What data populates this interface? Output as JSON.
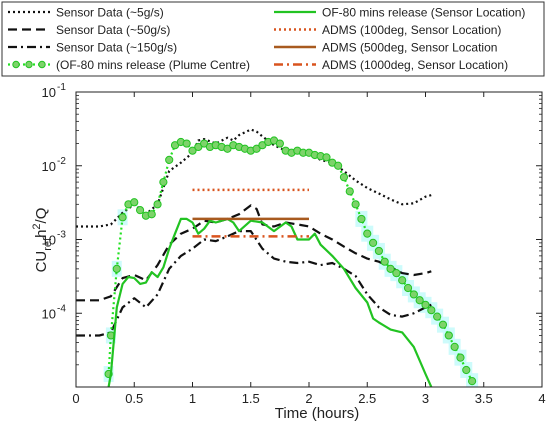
{
  "chart_data": {
    "type": "line",
    "xlabel": "Time (hours)",
    "ylabel": {
      "base": "CU",
      "sub": "ref",
      "mid": "h",
      "sup": "2",
      "tail": "/Q"
    },
    "xlim": [
      0,
      4
    ],
    "ylim": [
      1e-05,
      0.1
    ],
    "yscale": "log",
    "grid": false,
    "legend_position": "top (above plot, two columns)",
    "x_ticks": [
      0,
      0.5,
      1,
      1.5,
      2,
      2.5,
      3,
      3.5,
      4
    ],
    "x_tick_labels": [
      "0",
      "0.5",
      "1",
      "1.5",
      "2",
      "2.5",
      "3",
      "3.5",
      "4"
    ],
    "y_ticks": [
      {
        "value": 0.0001,
        "exp": "-4"
      },
      {
        "value": 0.001,
        "exp": "-3"
      },
      {
        "value": 0.01,
        "exp": "-2"
      },
      {
        "value": 0.1,
        "exp": "-1"
      }
    ],
    "y_tick_base": "10",
    "series": [
      {
        "name": "Sensor Data (~5g/s)",
        "color": "#111111",
        "dash": "dot",
        "x": [
          0.0,
          0.2,
          0.3,
          0.4,
          0.5,
          0.6,
          0.7,
          0.8,
          0.9,
          1.0,
          1.05,
          1.1,
          1.2,
          1.3,
          1.35,
          1.4,
          1.5,
          1.55,
          1.6,
          1.7,
          1.8,
          1.9,
          2.0,
          2.1,
          2.2,
          2.3,
          2.4,
          2.5,
          2.6,
          2.7,
          2.8,
          2.9,
          3.0,
          3.05
        ],
        "y": [
          0.0015,
          0.0015,
          0.0016,
          0.0023,
          0.003,
          0.0022,
          0.003,
          0.0085,
          0.011,
          0.015,
          0.022,
          0.023,
          0.02,
          0.024,
          0.022,
          0.026,
          0.031,
          0.029,
          0.025,
          0.019,
          0.016,
          0.016,
          0.015,
          0.012,
          0.011,
          0.0085,
          0.0063,
          0.005,
          0.0042,
          0.0035,
          0.003,
          0.0031,
          0.0038,
          0.004
        ]
      },
      {
        "name": "Sensor Data (~50g/s)",
        "color": "#111111",
        "dash": "dash",
        "x": [
          0.0,
          0.2,
          0.3,
          0.4,
          0.5,
          0.6,
          0.7,
          0.8,
          0.9,
          1.0,
          1.1,
          1.2,
          1.3,
          1.4,
          1.5,
          1.55,
          1.6,
          1.7,
          1.8,
          1.9,
          2.0,
          2.1,
          2.2,
          2.3,
          2.4,
          2.5,
          2.6,
          2.7,
          2.8,
          2.9,
          3.0,
          3.05
        ],
        "y": [
          0.00015,
          0.00015,
          0.00017,
          0.0003,
          0.00033,
          0.00028,
          0.00045,
          0.00085,
          0.0012,
          0.0014,
          0.0018,
          0.0017,
          0.0019,
          0.0022,
          0.0029,
          0.0026,
          0.0016,
          0.0015,
          0.0017,
          0.0016,
          0.0015,
          0.0012,
          0.001,
          0.0008,
          0.00065,
          0.00055,
          0.0005,
          0.00042,
          0.00035,
          0.00033,
          0.00035,
          0.00037
        ]
      },
      {
        "name": "Sensor Data (~150g/s)",
        "color": "#111111",
        "dash": "dashdot",
        "x": [
          0.0,
          0.2,
          0.3,
          0.4,
          0.5,
          0.6,
          0.7,
          0.8,
          0.9,
          1.0,
          1.1,
          1.2,
          1.3,
          1.4,
          1.5,
          1.6,
          1.7,
          1.8,
          1.9,
          2.0,
          2.1,
          2.2,
          2.3,
          2.4,
          2.5,
          2.6,
          2.7,
          2.8,
          2.9,
          3.0,
          3.05
        ],
        "y": [
          5e-05,
          5e-05,
          5.5e-05,
          0.00012,
          0.00016,
          0.00012,
          0.00018,
          0.0004,
          0.0006,
          0.00075,
          0.001,
          0.00095,
          0.0011,
          0.0013,
          0.0013,
          0.00075,
          0.00055,
          0.0005,
          0.00048,
          0.0005,
          0.00045,
          0.00048,
          0.0004,
          0.00032,
          0.00018,
          0.00012,
          9.5e-05,
          9e-05,
          0.0001,
          0.00012,
          0.00013
        ]
      },
      {
        "name": "(OF-80 mins release (Plume Centre)",
        "color": "#22e022",
        "dash": "dot",
        "markers": true,
        "x": [
          0.28,
          0.3,
          0.35,
          0.4,
          0.45,
          0.5,
          0.55,
          0.6,
          0.65,
          0.7,
          0.75,
          0.8,
          0.85,
          0.9,
          0.95,
          1.0,
          1.05,
          1.1,
          1.15,
          1.2,
          1.25,
          1.3,
          1.35,
          1.4,
          1.45,
          1.5,
          1.55,
          1.6,
          1.65,
          1.7,
          1.75,
          1.8,
          1.85,
          1.9,
          1.95,
          2.0,
          2.05,
          2.1,
          2.15,
          2.2,
          2.25,
          2.3,
          2.35,
          2.4,
          2.45,
          2.5,
          2.55,
          2.6,
          2.65,
          2.7,
          2.75,
          2.8,
          2.85,
          2.9,
          2.95,
          3.0,
          3.05,
          3.1,
          3.15,
          3.2,
          3.25,
          3.3,
          3.35,
          3.4
        ],
        "y": [
          1.5e-05,
          5e-05,
          0.0004,
          0.002,
          0.003,
          0.0032,
          0.0025,
          0.0021,
          0.0022,
          0.003,
          0.006,
          0.012,
          0.019,
          0.021,
          0.02,
          0.016,
          0.018,
          0.02,
          0.018,
          0.019,
          0.018,
          0.017,
          0.019,
          0.018,
          0.017,
          0.016,
          0.017,
          0.019,
          0.021,
          0.022,
          0.02,
          0.016,
          0.015,
          0.016,
          0.015,
          0.015,
          0.014,
          0.0135,
          0.013,
          0.011,
          0.01,
          0.007,
          0.0045,
          0.003,
          0.0019,
          0.0012,
          0.0009,
          0.0007,
          0.0005,
          0.0004,
          0.00035,
          0.00028,
          0.00022,
          0.00018,
          0.00015,
          0.00013,
          0.00011,
          9e-05,
          7e-05,
          5e-05,
          3.5e-05,
          2.5e-05,
          1.7e-05,
          1.2e-05
        ]
      },
      {
        "name": "OF-80 mins release (Sensor Location)",
        "color": "#22c322",
        "dash": "solid",
        "x": [
          0.28,
          0.3,
          0.35,
          0.4,
          0.45,
          0.5,
          0.55,
          0.6,
          0.65,
          0.7,
          0.75,
          0.8,
          0.85,
          0.9,
          0.95,
          1.0,
          1.05,
          1.1,
          1.15,
          1.2,
          1.3,
          1.35,
          1.4,
          1.5,
          1.6,
          1.7,
          1.8,
          1.85,
          1.9,
          2.0,
          2.05,
          2.1,
          2.2,
          2.3,
          2.4,
          2.5,
          2.55,
          2.6,
          2.7,
          2.8,
          2.9,
          3.0,
          3.05
        ],
        "y": [
          1e-05,
          1.5e-05,
          0.00012,
          0.00025,
          0.00031,
          0.0003,
          0.00025,
          0.00026,
          0.00036,
          0.00031,
          0.00042,
          0.00075,
          0.0012,
          0.0019,
          0.0019,
          0.0017,
          0.0012,
          0.0014,
          0.0018,
          0.0017,
          0.0019,
          0.0017,
          0.0013,
          0.0018,
          0.0017,
          0.0013,
          0.0017,
          0.0015,
          0.001,
          0.001,
          0.0012,
          0.00085,
          0.0006,
          0.0004,
          0.00022,
          0.00014,
          8.5e-05,
          7.5e-05,
          6e-05,
          5.5e-05,
          3.5e-05,
          1.5e-05,
          1e-05
        ]
      },
      {
        "name": "ADMS (100deg, Sensor Location)",
        "color": "#d9541e",
        "dash": "dot",
        "width": 2.5,
        "x": [
          1.0,
          2.0
        ],
        "y": [
          0.0047,
          0.0047
        ]
      },
      {
        "name": "ADMS (500deg, Sensor Location",
        "color": "#a85a1f",
        "dash": "solid",
        "width": 2.5,
        "x": [
          1.0,
          2.0
        ],
        "y": [
          0.0019,
          0.0019
        ]
      },
      {
        "name": "ADMS (1000deg, Sensor Location)",
        "color": "#d9541e",
        "dash": "dashdot",
        "width": 2.5,
        "x": [
          1.0,
          2.0
        ],
        "y": [
          0.0011,
          0.0011
        ]
      }
    ],
    "legend": {
      "left": [
        "Sensor Data (~5g/s)",
        "Sensor Data (~50g/s)",
        "Sensor Data (~150g/s)",
        "(OF-80 mins release (Plume Centre)"
      ],
      "right": [
        "OF-80 mins release (Sensor Location)",
        "ADMS (100deg, Sensor Location)",
        "ADMS (500deg, Sensor Location",
        "ADMS (1000deg, Sensor Location)"
      ]
    }
  }
}
